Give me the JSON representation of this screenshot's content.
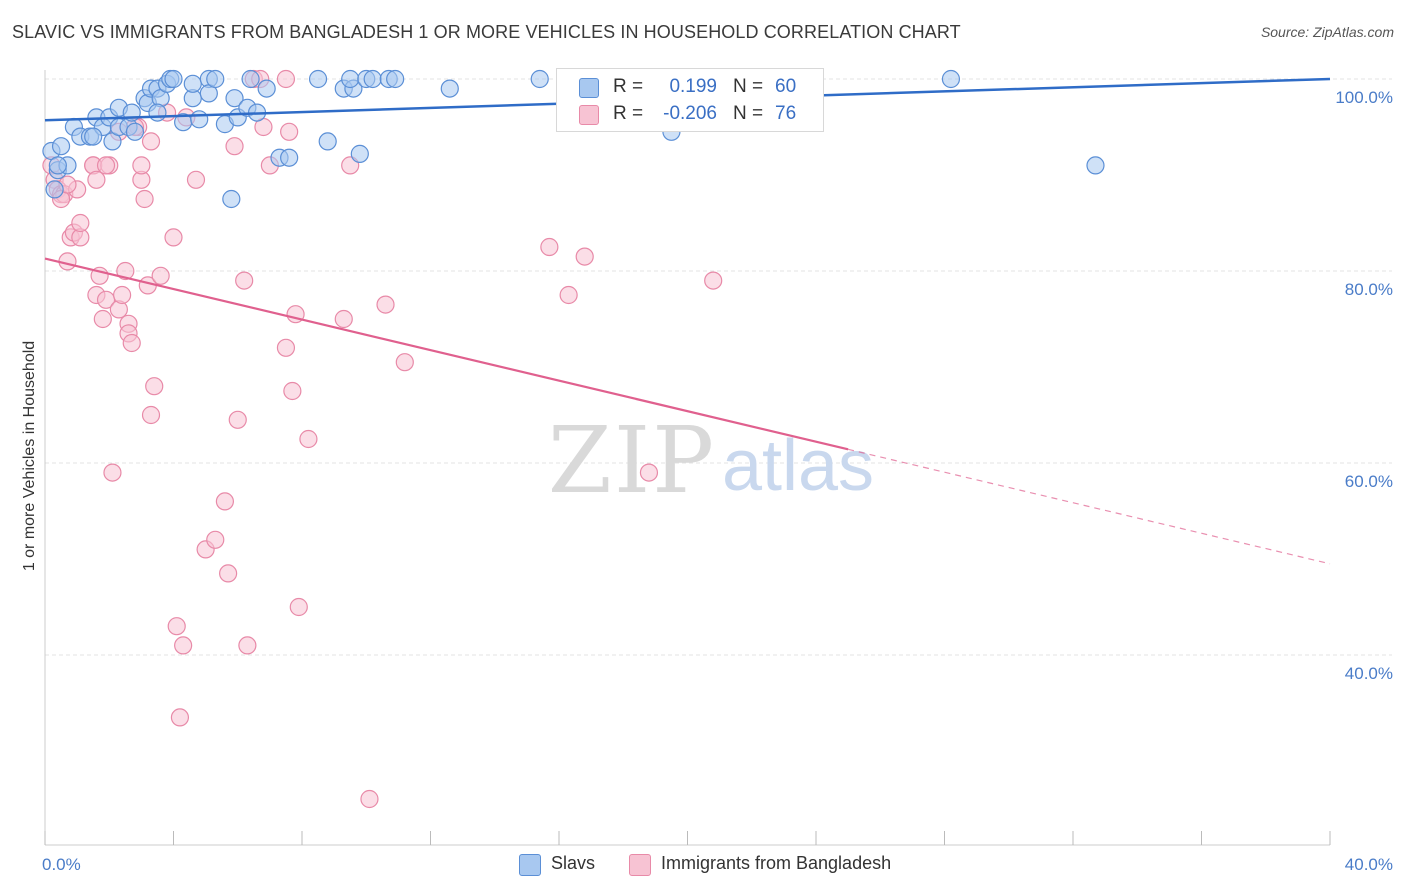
{
  "title": "SLAVIC VS IMMIGRANTS FROM BANGLADESH 1 OR MORE VEHICLES IN HOUSEHOLD CORRELATION CHART",
  "source": "Source: ZipAtlas.com",
  "watermark": {
    "zip": "ZIP",
    "atlas": "atlas"
  },
  "legend_top": {
    "rows": [
      {
        "r_label": "R =",
        "r_value": "0.199",
        "n_label": "N =",
        "n_value": "60"
      },
      {
        "r_label": "R =",
        "r_value": "-0.206",
        "n_label": "N =",
        "n_value": "76"
      }
    ]
  },
  "colors": {
    "slavs_fill": "#a8c8f0",
    "slavs_stroke": "#5b8fd6",
    "slavs_line": "#2f6cc7",
    "bangladesh_fill": "#f7c3d3",
    "bangladesh_stroke": "#e88aa8",
    "bangladesh_line": "#e0608e",
    "grid": "#e3e3e3",
    "tick_text": "#4a7cc8"
  },
  "chart_data": {
    "type": "scatter",
    "title": "SLAVIC VS IMMIGRANTS FROM BANGLADESH 1 OR MORE VEHICLES IN HOUSEHOLD CORRELATION CHART",
    "xlabel": "",
    "ylabel": "1 or more Vehicles in Household",
    "xlim": [
      0,
      40
    ],
    "ylim": [
      20,
      102
    ],
    "x_tick_labels": [
      {
        "value": 0,
        "label": "0.0%"
      },
      {
        "value": 40,
        "label": "40.0%"
      }
    ],
    "x_minor_ticks": [
      0,
      4,
      8,
      12,
      16,
      20,
      24,
      28,
      32,
      36,
      40
    ],
    "y_ticks": [
      {
        "value": 100,
        "label": "100.0%"
      },
      {
        "value": 80,
        "label": "80.0%"
      },
      {
        "value": 60,
        "label": "60.0%"
      },
      {
        "value": 40,
        "label": "40.0%"
      }
    ],
    "grid": true,
    "series": [
      {
        "name": "Slavs",
        "r": 0.199,
        "n": 60,
        "trend": {
          "x0": 0,
          "y0": 95.7,
          "x1": 40,
          "y1": 100.0,
          "dashed_from": null
        },
        "points": [
          [
            0.2,
            92.5
          ],
          [
            0.3,
            88.5
          ],
          [
            0.4,
            90.5
          ],
          [
            0.5,
            93.0
          ],
          [
            0.7,
            91.0
          ],
          [
            0.9,
            95.0
          ],
          [
            1.1,
            94.0
          ],
          [
            1.4,
            94.0
          ],
          [
            1.6,
            96.0
          ],
          [
            1.8,
            95.0
          ],
          [
            2.0,
            96.0
          ],
          [
            2.1,
            93.5
          ],
          [
            2.3,
            95.0
          ],
          [
            2.3,
            97.0
          ],
          [
            2.6,
            95.0
          ],
          [
            2.7,
            96.5
          ],
          [
            2.8,
            94.5
          ],
          [
            3.1,
            98.0
          ],
          [
            3.2,
            97.5
          ],
          [
            3.3,
            99.0
          ],
          [
            3.5,
            99.0
          ],
          [
            3.6,
            98.0
          ],
          [
            3.8,
            99.5
          ],
          [
            3.9,
            100.0
          ],
          [
            4.0,
            100.0
          ],
          [
            4.3,
            95.5
          ],
          [
            4.6,
            98.0
          ],
          [
            4.6,
            99.5
          ],
          [
            4.8,
            95.8
          ],
          [
            5.1,
            100.0
          ],
          [
            5.1,
            98.5
          ],
          [
            5.3,
            100.0
          ],
          [
            5.6,
            95.3
          ],
          [
            5.9,
            98.0
          ],
          [
            6.0,
            96.0
          ],
          [
            5.8,
            87.5
          ],
          [
            6.3,
            97.0
          ],
          [
            6.4,
            100.0
          ],
          [
            6.6,
            96.5
          ],
          [
            6.9,
            99.0
          ],
          [
            7.3,
            91.8
          ],
          [
            7.6,
            91.8
          ],
          [
            8.5,
            100.0
          ],
          [
            8.8,
            93.5
          ],
          [
            9.3,
            99.0
          ],
          [
            9.6,
            99.0
          ],
          [
            9.5,
            100.0
          ],
          [
            9.8,
            92.2
          ],
          [
            10.0,
            100.0
          ],
          [
            10.2,
            100.0
          ],
          [
            10.7,
            100.0
          ],
          [
            10.9,
            100.0
          ],
          [
            12.6,
            99.0
          ],
          [
            15.4,
            100.0
          ],
          [
            19.5,
            94.5
          ],
          [
            28.2,
            100.0
          ],
          [
            32.7,
            91.0
          ],
          [
            0.4,
            91.0
          ],
          [
            1.5,
            94.0
          ],
          [
            3.5,
            96.5
          ]
        ]
      },
      {
        "name": "Immigrants from Bangladesh",
        "r": -0.206,
        "n": 76,
        "trend": {
          "x0": 0,
          "y0": 81.3,
          "x1": 40,
          "y1": 49.5,
          "dashed_from": 25.0
        },
        "points": [
          [
            0.2,
            91.0
          ],
          [
            0.3,
            89.5
          ],
          [
            0.4,
            88.5
          ],
          [
            0.5,
            88.0
          ],
          [
            0.6,
            88.0
          ],
          [
            0.7,
            81.0
          ],
          [
            0.8,
            83.5
          ],
          [
            0.9,
            84.0
          ],
          [
            1.0,
            88.5
          ],
          [
            1.1,
            83.5
          ],
          [
            1.1,
            85.0
          ],
          [
            1.5,
            91.0
          ],
          [
            1.5,
            91.0
          ],
          [
            1.6,
            89.5
          ],
          [
            1.6,
            77.5
          ],
          [
            1.7,
            79.5
          ],
          [
            1.8,
            75.0
          ],
          [
            1.9,
            77.0
          ],
          [
            2.0,
            91.0
          ],
          [
            2.1,
            59.0
          ],
          [
            2.3,
            76.0
          ],
          [
            2.3,
            94.5
          ],
          [
            2.4,
            77.5
          ],
          [
            2.5,
            80.0
          ],
          [
            2.6,
            74.5
          ],
          [
            2.6,
            73.5
          ],
          [
            2.7,
            72.5
          ],
          [
            2.9,
            95.0
          ],
          [
            3.0,
            89.5
          ],
          [
            3.1,
            87.5
          ],
          [
            3.2,
            78.5
          ],
          [
            3.3,
            93.5
          ],
          [
            3.3,
            65.0
          ],
          [
            3.4,
            68.0
          ],
          [
            3.6,
            79.5
          ],
          [
            3.8,
            96.5
          ],
          [
            4.0,
            83.5
          ],
          [
            4.1,
            43.0
          ],
          [
            4.2,
            33.5
          ],
          [
            4.3,
            41.0
          ],
          [
            4.7,
            89.5
          ],
          [
            5.0,
            51.0
          ],
          [
            5.3,
            52.0
          ],
          [
            5.6,
            56.0
          ],
          [
            5.7,
            48.5
          ],
          [
            5.9,
            93.0
          ],
          [
            6.0,
            64.5
          ],
          [
            6.2,
            79.0
          ],
          [
            6.3,
            41.0
          ],
          [
            6.5,
            100.0
          ],
          [
            6.8,
            95.0
          ],
          [
            7.0,
            91.0
          ],
          [
            7.5,
            72.0
          ],
          [
            7.6,
            94.5
          ],
          [
            7.7,
            67.5
          ],
          [
            7.8,
            75.5
          ],
          [
            7.9,
            45.0
          ],
          [
            8.2,
            62.5
          ],
          [
            9.3,
            75.0
          ],
          [
            9.5,
            91.0
          ],
          [
            10.1,
            25.0
          ],
          [
            10.6,
            76.5
          ],
          [
            11.2,
            70.5
          ],
          [
            15.7,
            82.5
          ],
          [
            16.3,
            77.5
          ],
          [
            16.8,
            81.5
          ],
          [
            18.8,
            59.0
          ],
          [
            20.8,
            79.0
          ],
          [
            0.5,
            87.5
          ],
          [
            0.7,
            89.0
          ],
          [
            1.9,
            91.0
          ],
          [
            2.8,
            95.0
          ],
          [
            3.0,
            91.0
          ],
          [
            4.4,
            96.0
          ],
          [
            6.7,
            100.0
          ],
          [
            7.5,
            100.0
          ]
        ]
      }
    ]
  },
  "legend_bottom": {
    "items": [
      {
        "label": "Slavs"
      },
      {
        "label": "Immigrants from Bangladesh"
      }
    ]
  }
}
